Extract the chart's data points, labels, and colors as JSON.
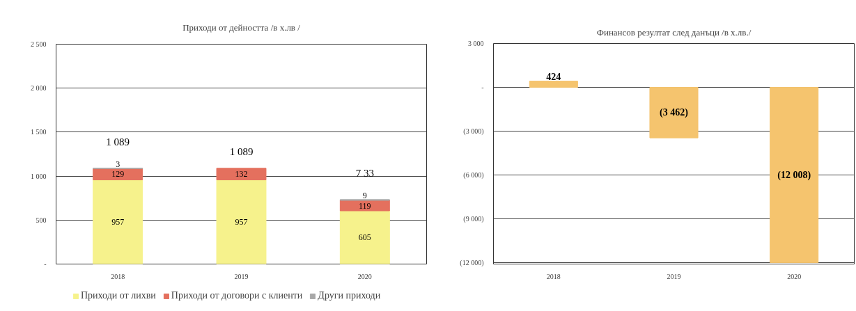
{
  "chart_data": [
    {
      "type": "bar",
      "title": "Приходи от дейността /в х.лв /",
      "categories": [
        "2018",
        "2019",
        "2020"
      ],
      "stacked": true,
      "series": [
        {
          "name": "Приходи от лихви",
          "color": "#f6f28c",
          "values": [
            957,
            957,
            605
          ],
          "value_labels": [
            "957",
            "957",
            "605"
          ]
        },
        {
          "name": "Приходи от договори с клиенти",
          "color": "#e4705e",
          "values": [
            129,
            132,
            119
          ],
          "value_labels": [
            "129",
            "132",
            "119"
          ]
        },
        {
          "name": "Други приходи",
          "color": "#a8a8a8",
          "values": [
            3,
            null,
            9
          ],
          "value_labels": [
            "3",
            null,
            "9"
          ]
        }
      ],
      "totals": [
        "1 089",
        "1 089",
        "7 33"
      ],
      "ylim": [
        0,
        2500
      ],
      "yticks": [
        {
          "value": 0,
          "label": "-"
        },
        500,
        {
          "value": 1000,
          "label": "1 000"
        },
        {
          "value": 1500,
          "label": "1 500"
        },
        {
          "value": 2000,
          "label": "2 000"
        },
        {
          "value": 2500,
          "label": "2 500"
        }
      ],
      "grid": "y",
      "legend": "bottom"
    },
    {
      "type": "bar",
      "title": "Финансов резултат след данъци /в х.лв./",
      "categories": [
        "2018",
        "2019",
        "2020"
      ],
      "values": [
        424,
        -3462,
        -12008
      ],
      "value_labels": [
        "424",
        "(3 462)",
        "(12 008)"
      ],
      "color": "#f5c46e",
      "ylim": [
        -12100,
        3000
      ],
      "yticks": [
        {
          "value": -12000,
          "label": "(12 000)"
        },
        {
          "value": -9000,
          "label": "(9 000)"
        },
        {
          "value": -6000,
          "label": "(6 000)"
        },
        {
          "value": -3000,
          "label": "(3 000)"
        },
        {
          "value": 0,
          "label": "-"
        },
        {
          "value": 3000,
          "label": "3 000"
        }
      ],
      "grid": "y"
    }
  ]
}
